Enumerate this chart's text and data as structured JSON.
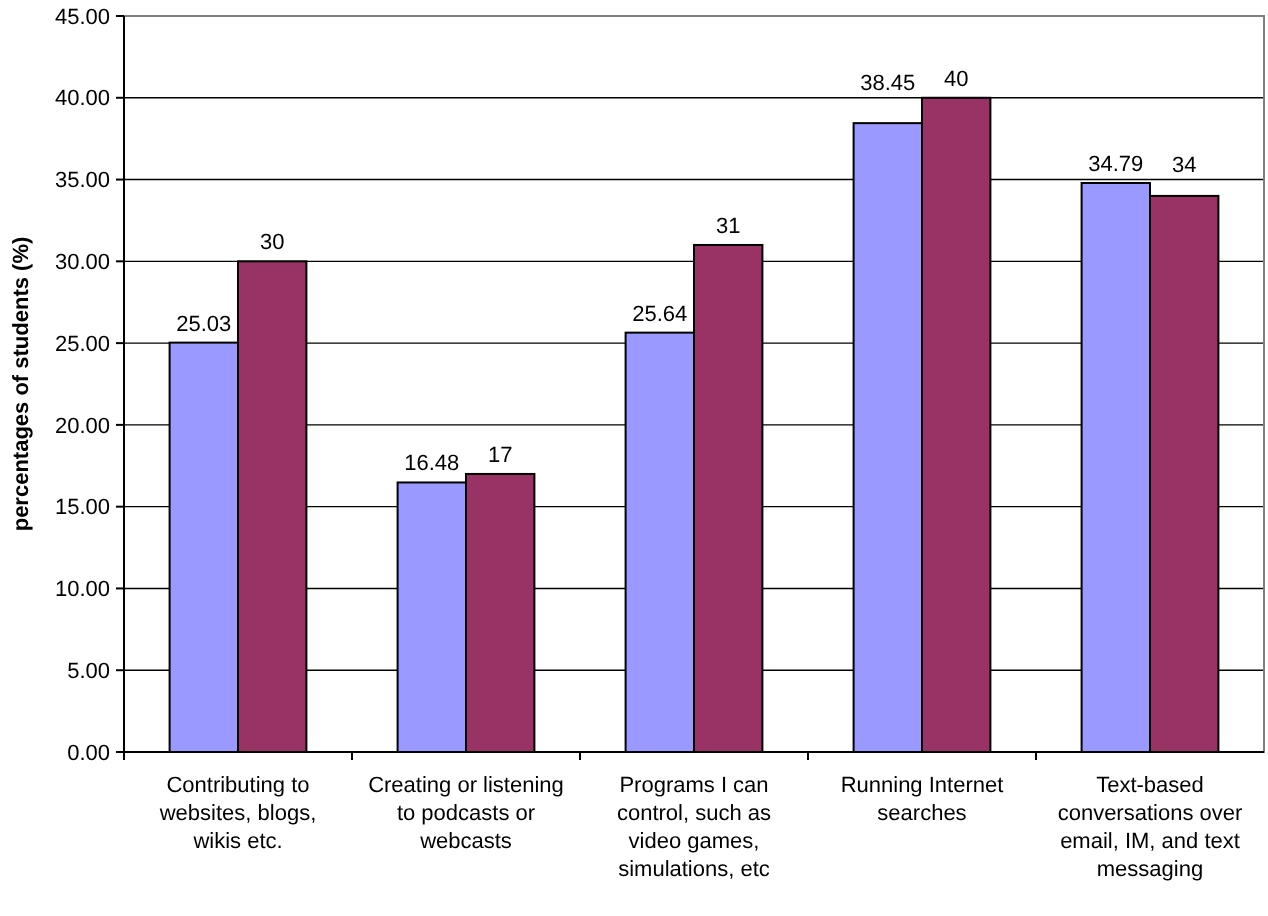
{
  "chart_data": {
    "type": "bar",
    "ylabel": "percentages of students (%)",
    "categories": [
      "Contributing to websites, blogs, wikis etc.",
      "Creating or listening to podcasts or webcasts",
      "Programs I can control, such as video games, simulations, etc",
      "Running Internet searches",
      "Text-based conversations over email, IM, and text messaging"
    ],
    "series": [
      {
        "color": "#9999ff",
        "values": [
          25.03,
          16.48,
          25.64,
          38.45,
          34.79
        ]
      },
      {
        "color": "#993366",
        "values": [
          30,
          17,
          31,
          40,
          34
        ]
      }
    ],
    "ylim": [
      0,
      45
    ],
    "yticks": [
      {
        "value": 0,
        "label": "0.00"
      },
      {
        "value": 5,
        "label": "5.00"
      },
      {
        "value": 10,
        "label": "10.00"
      },
      {
        "value": 15,
        "label": "15.00"
      },
      {
        "value": 20,
        "label": "20.00"
      },
      {
        "value": 25,
        "label": "25.00"
      },
      {
        "value": 30,
        "label": "30.00"
      },
      {
        "value": 35,
        "label": "35.00"
      },
      {
        "value": 40,
        "label": "40.00"
      },
      {
        "value": 45,
        "label": "45.00"
      }
    ],
    "grid": "y",
    "data_labels": true
  }
}
